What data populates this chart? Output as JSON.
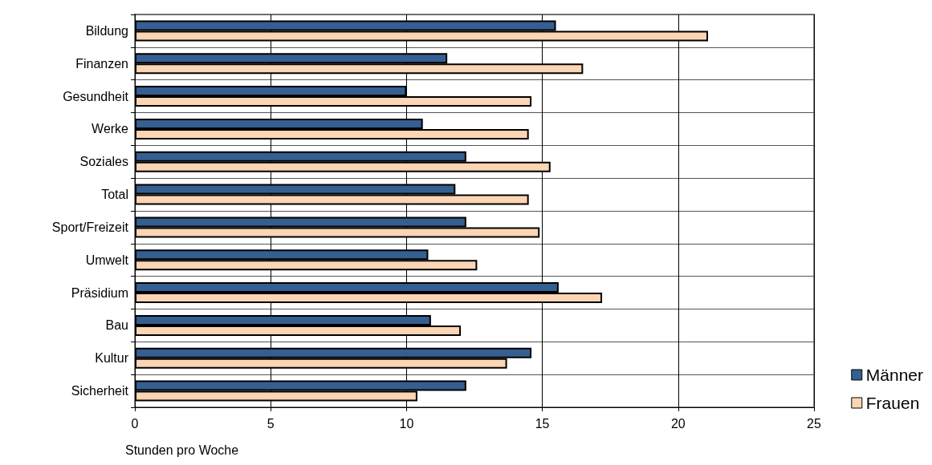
{
  "chart_data": {
    "type": "bar",
    "orientation": "horizontal",
    "xlabel": "Stunden pro Woche",
    "categories": [
      "Bildung",
      "Finanzen",
      "Gesundheit",
      "Werke",
      "Soziales",
      "Total",
      "Sport/Freizeit",
      "Umwelt",
      "Präsidium",
      "Bau",
      "Kultur",
      "Sicherheit"
    ],
    "series": [
      {
        "name": "Männer",
        "color": "#355f91",
        "values": [
          15.5,
          11.5,
          10.0,
          10.6,
          12.2,
          11.8,
          12.2,
          10.8,
          15.6,
          10.9,
          14.6,
          12.2
        ]
      },
      {
        "name": "Frauen",
        "color": "#fcd5b4",
        "values": [
          21.1,
          16.5,
          14.6,
          14.5,
          15.3,
          14.5,
          14.9,
          12.6,
          17.2,
          12.0,
          13.7,
          10.4
        ]
      }
    ],
    "xlim": [
      0,
      25
    ],
    "xticks": [
      0,
      5,
      10,
      15,
      20,
      25
    ],
    "grid": true,
    "legend": "bottom right"
  }
}
